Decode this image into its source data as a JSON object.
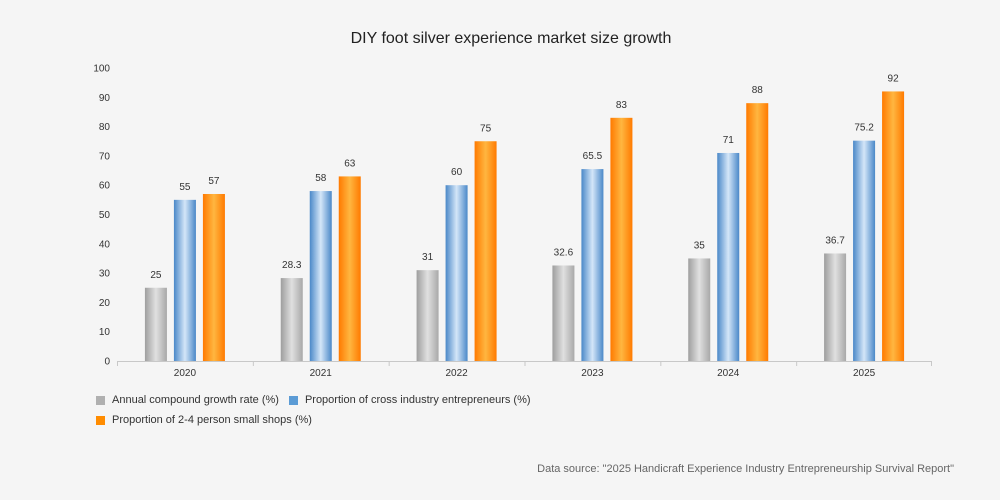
{
  "chart_data": {
    "type": "bar",
    "title": "DIY foot silver experience market size growth",
    "categories": [
      "2020",
      "2021",
      "2022",
      "2023",
      "2024",
      "2025"
    ],
    "series": [
      {
        "name": "Annual compound growth rate (%)",
        "values": [
          25,
          28.3,
          31,
          32.6,
          35,
          36.7
        ],
        "color": "#b9b9b9"
      },
      {
        "name": "Proportion of cross industry entrepreneurs (%)",
        "values": [
          55,
          58,
          60,
          65.5,
          71,
          75.2
        ],
        "color": "#5b9bd5"
      },
      {
        "name": "Proportion of 2-4 person small shops (%)",
        "values": [
          57,
          63,
          75,
          83,
          88,
          92
        ],
        "color": "#ff8c00"
      }
    ],
    "ylim": [
      0,
      100
    ],
    "yticks": [
      0,
      10,
      20,
      30,
      40,
      50,
      60,
      70,
      80,
      90,
      100
    ],
    "grid": false,
    "legend_position": "bottom-left"
  },
  "footer": {
    "source": "Data source: \"2025 Handicraft Experience Industry Entrepreneurship Survival Report\""
  }
}
